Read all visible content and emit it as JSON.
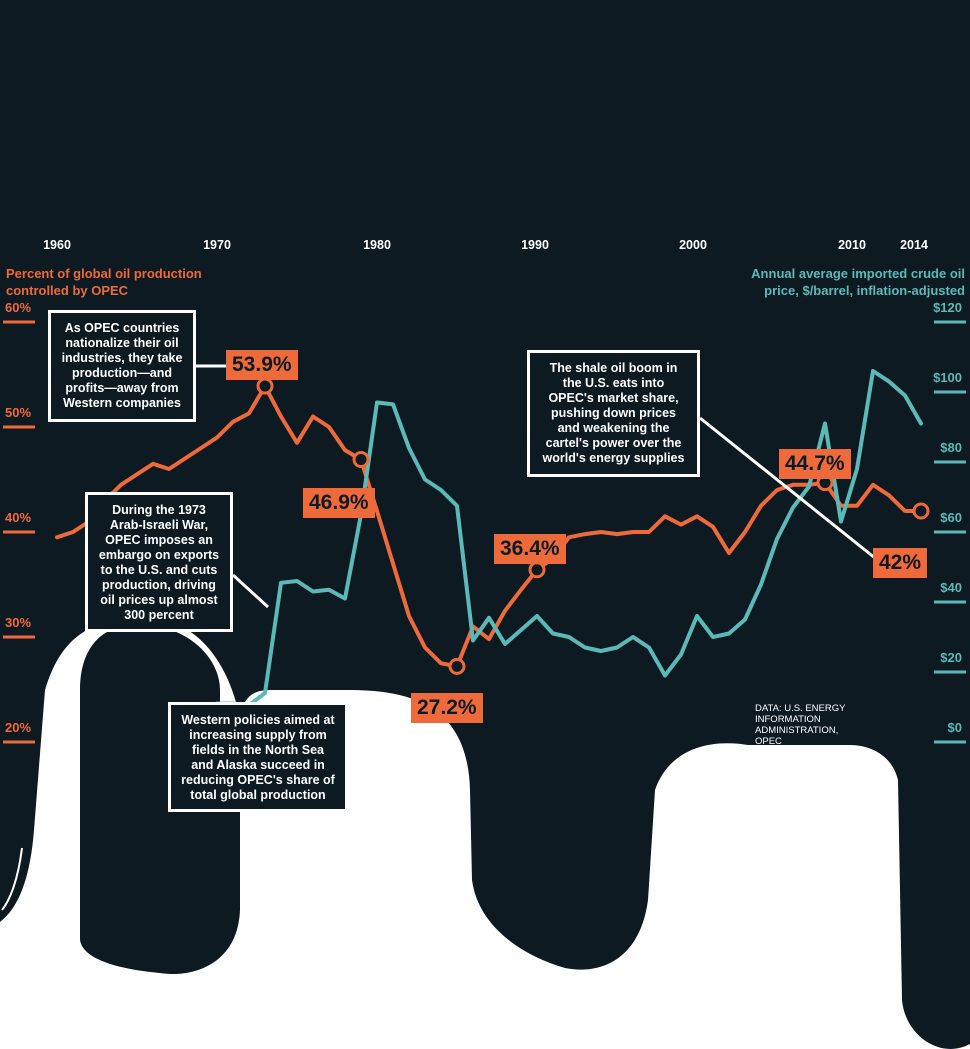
{
  "colors": {
    "background": "#0d1a22",
    "share_line": "#ef6a3a",
    "price_line": "#5bbab8",
    "text": "#ffffff",
    "cutout": "#ffffff"
  },
  "left_axis_title": "Percent of global oil production controlled by OPEC",
  "right_axis_title": "Annual average imported crude oil price, $/barrel, inflation-adjusted",
  "source": "DATA: U.S. ENERGY INFORMATION ADMINISTRATION, OPEC",
  "annotations": [
    {
      "id": "nationalize",
      "text": "As OPEC countries nationalize their oil industries, they take production—and profits—away from Western companies"
    },
    {
      "id": "embargo",
      "text": "During the 1973 Arab-Israeli War, OPEC imposes an embargo on exports to the U.S. and cuts production, driving oil prices up almost 300 percent"
    },
    {
      "id": "western",
      "text": "Western policies aimed at increasing supply from fields in the North Sea and Alaska succeed in reducing OPEC's share of total global production"
    },
    {
      "id": "shale",
      "text": "The shale oil boom in the U.S. eats into OPEC's market share, pushing down prices and weakening the cartel's power over the world's energy supplies"
    }
  ],
  "callouts": [
    {
      "id": "c1973",
      "year": 1973,
      "value": 53.9,
      "label": "53.9%"
    },
    {
      "id": "c1979",
      "year": 1979,
      "value": 46.9,
      "label": "46.9%"
    },
    {
      "id": "c1985",
      "year": 1985,
      "value": 27.2,
      "label": "27.2%"
    },
    {
      "id": "c1990",
      "year": 1990,
      "value": 36.4,
      "label": "36.4%"
    },
    {
      "id": "c2008",
      "year": 2008,
      "value": 44.7,
      "label": "44.7%"
    },
    {
      "id": "c2014",
      "year": 2014,
      "value": 42,
      "label": "42%"
    }
  ],
  "chart_data": {
    "type": "line",
    "x_ticks": [
      1960,
      1970,
      1980,
      1990,
      2000,
      2010,
      2014
    ],
    "x_tick_labels": [
      "1960",
      "1970",
      "1980",
      "1990",
      "2000",
      "2010",
      "2014"
    ],
    "xlim": [
      1960,
      2014
    ],
    "left_axis": {
      "ticks": [
        20,
        30,
        40,
        50,
        60
      ],
      "tick_labels": [
        "20%",
        "30%",
        "40%",
        "50%",
        "60%"
      ],
      "ylim": [
        20,
        60
      ]
    },
    "right_axis": {
      "ticks": [
        0,
        20,
        40,
        60,
        80,
        100,
        120
      ],
      "tick_labels": [
        "$0",
        "$20",
        "$40",
        "$60",
        "$80",
        "$100",
        "$120"
      ],
      "ylim": [
        0,
        120
      ]
    },
    "grid": false,
    "series": [
      {
        "axis": "left",
        "x": [
          1960,
          1961,
          1962,
          1963,
          1964,
          1965,
          1966,
          1967,
          1968,
          1969,
          1970,
          1971,
          1972,
          1973,
          1974,
          1975,
          1976,
          1977,
          1978,
          1979,
          1980,
          1981,
          1982,
          1983,
          1984,
          1985,
          1986,
          1987,
          1988,
          1989,
          1990,
          1991,
          1992,
          1993,
          1994,
          1995,
          1996,
          1997,
          1998,
          1999,
          2000,
          2001,
          2002,
          2003,
          2004,
          2005,
          2006,
          2007,
          2008,
          2009,
          2010,
          2011,
          2012,
          2013,
          2014
        ],
        "y": [
          39.5,
          40,
          41,
          43,
          44.5,
          45.5,
          46.5,
          46,
          47,
          48,
          49,
          50.5,
          51.3,
          53.9,
          51,
          48.5,
          51,
          50,
          47.8,
          46.9,
          42,
          37,
          32,
          29,
          27.5,
          27.2,
          31,
          29.8,
          32.5,
          34.5,
          36.4,
          37.5,
          39.5,
          39.8,
          40,
          39.8,
          40,
          40,
          41.5,
          40.7,
          41.5,
          40.5,
          38,
          40,
          42.5,
          44,
          44.5,
          44.5,
          44.7,
          42.5,
          42.5,
          44.5,
          43.5,
          42,
          42
        ]
      },
      {
        "axis": "right",
        "x": [
          1970,
          1971,
          1972,
          1973,
          1974,
          1975,
          1976,
          1977,
          1978,
          1979,
          1980,
          1981,
          1982,
          1983,
          1984,
          1985,
          1986,
          1987,
          1988,
          1989,
          1990,
          1991,
          1992,
          1993,
          1994,
          1995,
          1996,
          1997,
          1998,
          1999,
          2000,
          2001,
          2002,
          2003,
          2004,
          2005,
          2006,
          2007,
          2008,
          2009,
          2010,
          2011,
          2012,
          2013,
          2014
        ],
        "y": [
          11,
          11,
          10.5,
          14,
          45.5,
          46,
          43,
          43.5,
          41,
          65,
          97,
          96.5,
          84,
          75,
          72,
          67.5,
          29,
          35.5,
          28,
          32,
          36,
          31,
          30,
          27,
          26,
          27,
          30,
          27,
          19,
          25,
          36,
          30,
          31,
          35,
          45,
          58,
          67,
          73,
          91,
          63,
          78,
          106,
          103,
          99,
          91
        ]
      }
    ]
  }
}
